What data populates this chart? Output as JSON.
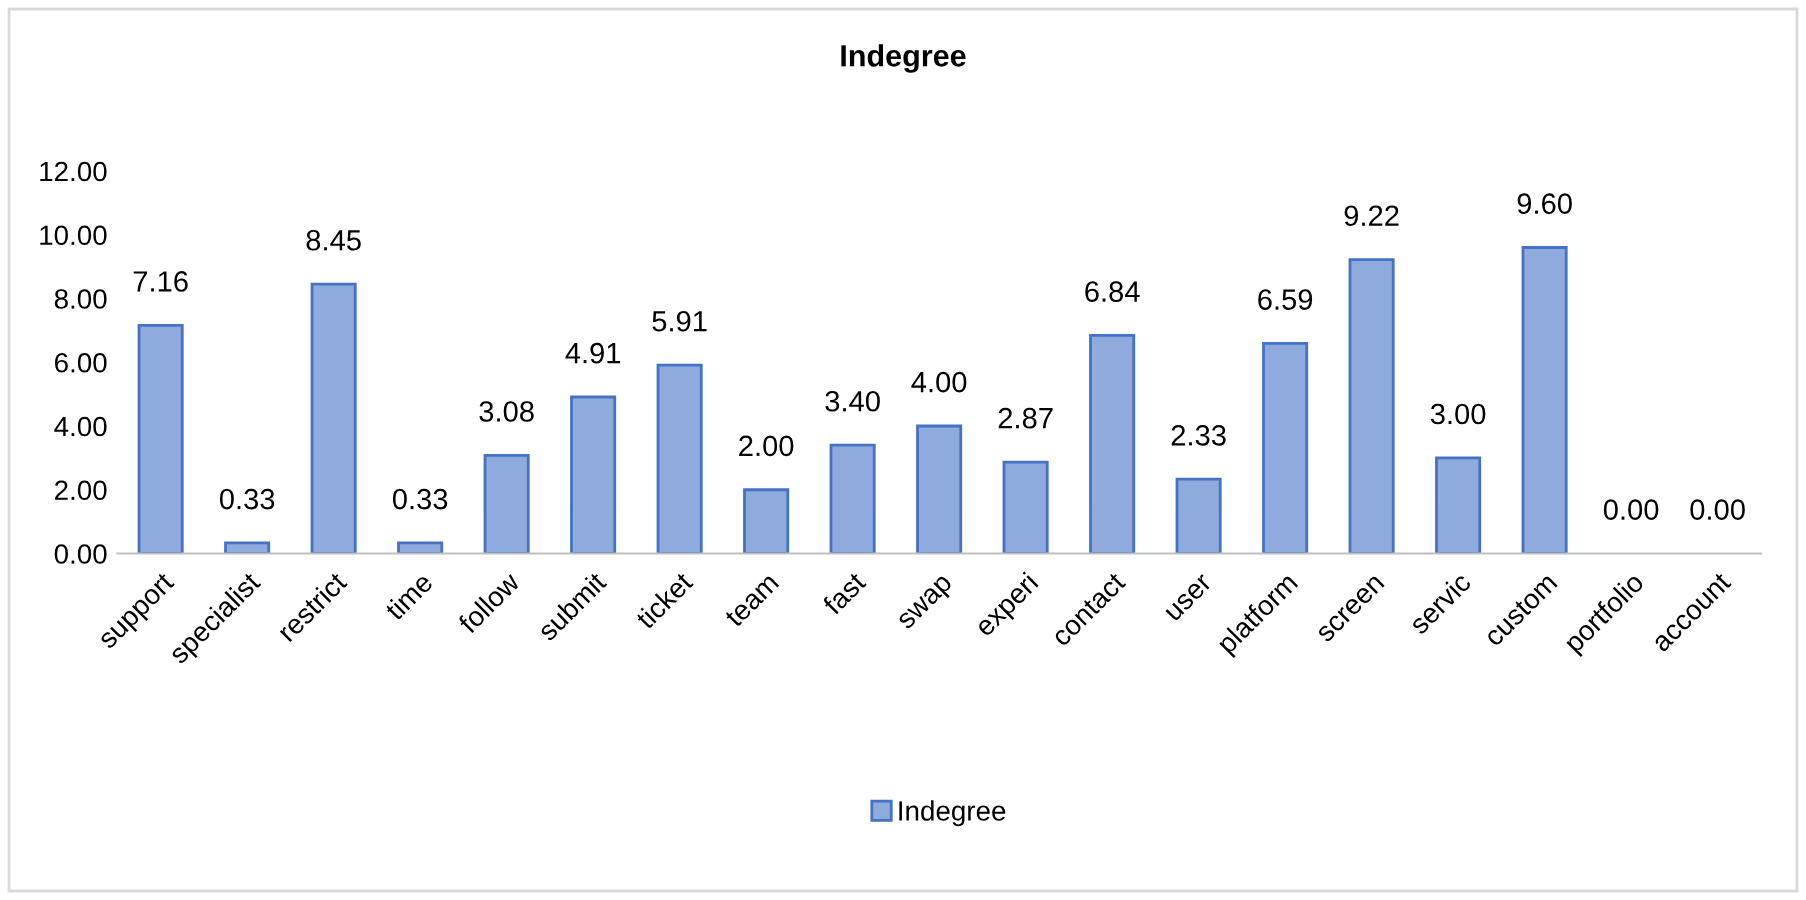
{
  "chart_data": {
    "type": "bar",
    "title": "Indegree",
    "categories": [
      "support",
      "specialist",
      "restrict",
      "time",
      "follow",
      "submit",
      "ticket",
      "team",
      "fast",
      "swap",
      "experi",
      "contact",
      "user",
      "platform",
      "screen",
      "servic",
      "custom",
      "portfolio",
      "account"
    ],
    "series": [
      {
        "name": "Indegree",
        "color": "#8faadc",
        "values": [
          7.16,
          0.33,
          8.45,
          0.33,
          3.08,
          4.91,
          5.91,
          2.0,
          3.4,
          4.0,
          2.87,
          6.84,
          2.33,
          6.59,
          9.22,
          3.0,
          9.6,
          0.0,
          0.0
        ],
        "value_labels": [
          "7.16",
          "0.33",
          "8.45",
          "0.33",
          "3.08",
          "4.91",
          "5.91",
          "2.00",
          "3.40",
          "4.00",
          "2.87",
          "6.84",
          "2.33",
          "6.59",
          "9.22",
          "3.00",
          "9.60",
          "0.00",
          "0.00"
        ]
      }
    ],
    "ylim": [
      0,
      12
    ],
    "yticks": [
      {
        "value": 0,
        "label": "0.00"
      },
      {
        "value": 2,
        "label": "2.00"
      },
      {
        "value": 4,
        "label": "4.00"
      },
      {
        "value": 6,
        "label": "6.00"
      },
      {
        "value": 8,
        "label": "8.00"
      },
      {
        "value": 10,
        "label": "10.00"
      },
      {
        "value": 12,
        "label": "12.00"
      }
    ],
    "grid": false,
    "legend": "bottom"
  }
}
